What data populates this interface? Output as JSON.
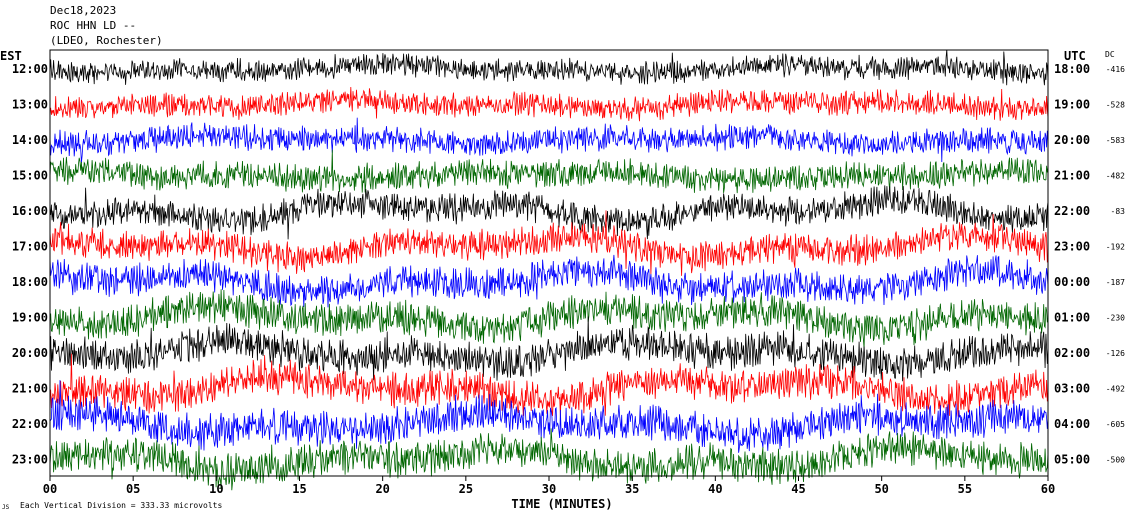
{
  "header": {
    "date": "Dec18,2023",
    "station": "ROC HHN LD --",
    "location": "(LDEO, Rochester)"
  },
  "footer": {
    "scale_note": "Each Vertical Division =  333.33 microvolts",
    "logo_text": "JS"
  },
  "chart_data": {
    "type": "line",
    "title": "",
    "xlabel": "TIME (MINUTES)",
    "left_axis_label": "EST",
    "right_axis_label": "UTC",
    "dc_label": "DC",
    "xlim": [
      0,
      60
    ],
    "x_ticks": [
      0,
      5,
      10,
      15,
      20,
      25,
      30,
      35,
      40,
      45,
      50,
      55,
      60
    ],
    "x_tick_labels": [
      "00",
      "05",
      "10",
      "15",
      "20",
      "25",
      "30",
      "35",
      "40",
      "45",
      "50",
      "55",
      "60"
    ],
    "grid": false,
    "trace_colors": [
      "#000000",
      "#ff0000",
      "#0000ff",
      "#006600"
    ],
    "rows": [
      {
        "est": "12:00",
        "utc": "18:00",
        "dc": "-416",
        "color": "#000000"
      },
      {
        "est": "13:00",
        "utc": "19:00",
        "dc": "-528",
        "color": "#ff0000"
      },
      {
        "est": "14:00",
        "utc": "20:00",
        "dc": "-583",
        "color": "#0000ff"
      },
      {
        "est": "15:00",
        "utc": "21:00",
        "dc": "-482",
        "color": "#006600"
      },
      {
        "est": "16:00",
        "utc": "22:00",
        "dc": "-83",
        "color": "#000000"
      },
      {
        "est": "17:00",
        "utc": "23:00",
        "dc": "-192",
        "color": "#ff0000"
      },
      {
        "est": "18:00",
        "utc": "00:00",
        "dc": "-187",
        "color": "#0000ff"
      },
      {
        "est": "19:00",
        "utc": "01:00",
        "dc": "-230",
        "color": "#006600"
      },
      {
        "est": "20:00",
        "utc": "02:00",
        "dc": "-126",
        "color": "#000000"
      },
      {
        "est": "21:00",
        "utc": "03:00",
        "dc": "-492",
        "color": "#ff0000"
      },
      {
        "est": "22:00",
        "utc": "04:00",
        "dc": "-605",
        "color": "#0000ff"
      },
      {
        "est": "23:00",
        "utc": "05:00",
        "dc": "-500",
        "color": "#006600"
      }
    ]
  }
}
